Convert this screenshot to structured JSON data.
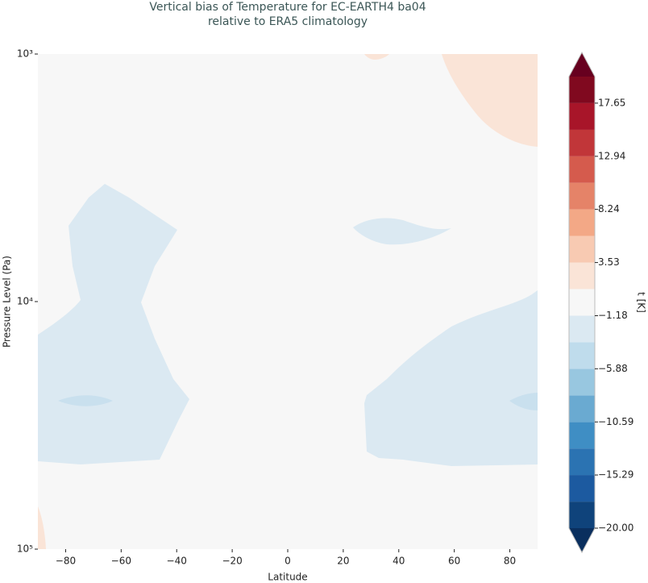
{
  "chart_data": {
    "type": "contour",
    "title": [
      "Vertical bias of Temperature for EC-EARTH4 ba04",
      "relative to ERA5 climatology"
    ],
    "xlabel": "Latitude",
    "ylabel": "Pressure Level (Pa)",
    "xlim": [
      -90,
      90
    ],
    "xticks": [
      {
        "value": -80,
        "label": "−80"
      },
      {
        "value": -60,
        "label": "−60"
      },
      {
        "value": -40,
        "label": "−40"
      },
      {
        "value": -20,
        "label": "−20"
      },
      0,
      20,
      40,
      60,
      80
    ],
    "ylim": [
      100000,
      1000
    ],
    "yscale": "log",
    "yticks": [
      {
        "value": 1000,
        "label": "10³"
      },
      {
        "value": 10000,
        "label": "10⁴"
      },
      {
        "value": 100000,
        "label": "10⁵"
      }
    ],
    "colorbar_label": "t [K]",
    "levels": [
      -20,
      -17.65,
      -15.29,
      -12.94,
      -10.59,
      -8.24,
      -5.88,
      -3.53,
      -1.18,
      1.18,
      3.53,
      5.88,
      8.24,
      10.59,
      12.94,
      15.29,
      17.65,
      20
    ],
    "colors": [
      "#0f437b",
      "#1c5aa0",
      "#2b73b2",
      "#3f8ec4",
      "#6aaad1",
      "#98c7e0",
      "#bfdcec",
      "#dbe9f2",
      "#f7f7f7",
      "#fae4d7",
      "#f8cab2",
      "#f3a886",
      "#e58368",
      "#d55b4d",
      "#c13639",
      "#a81529",
      "#80091f"
    ],
    "under_color": "#0a2f5e",
    "over_color": "#67001f",
    "colorbar_ticks": [
      {
        "value": -20,
        "label": "−20.00"
      },
      {
        "value": -15.29,
        "label": "−15.29"
      },
      {
        "value": -10.59,
        "label": "−10.59"
      },
      {
        "value": -5.88,
        "label": "−5.88"
      },
      {
        "value": -1.18,
        "label": "−1.18"
      },
      3.53,
      8.24,
      12.94,
      17.65
    ]
  }
}
